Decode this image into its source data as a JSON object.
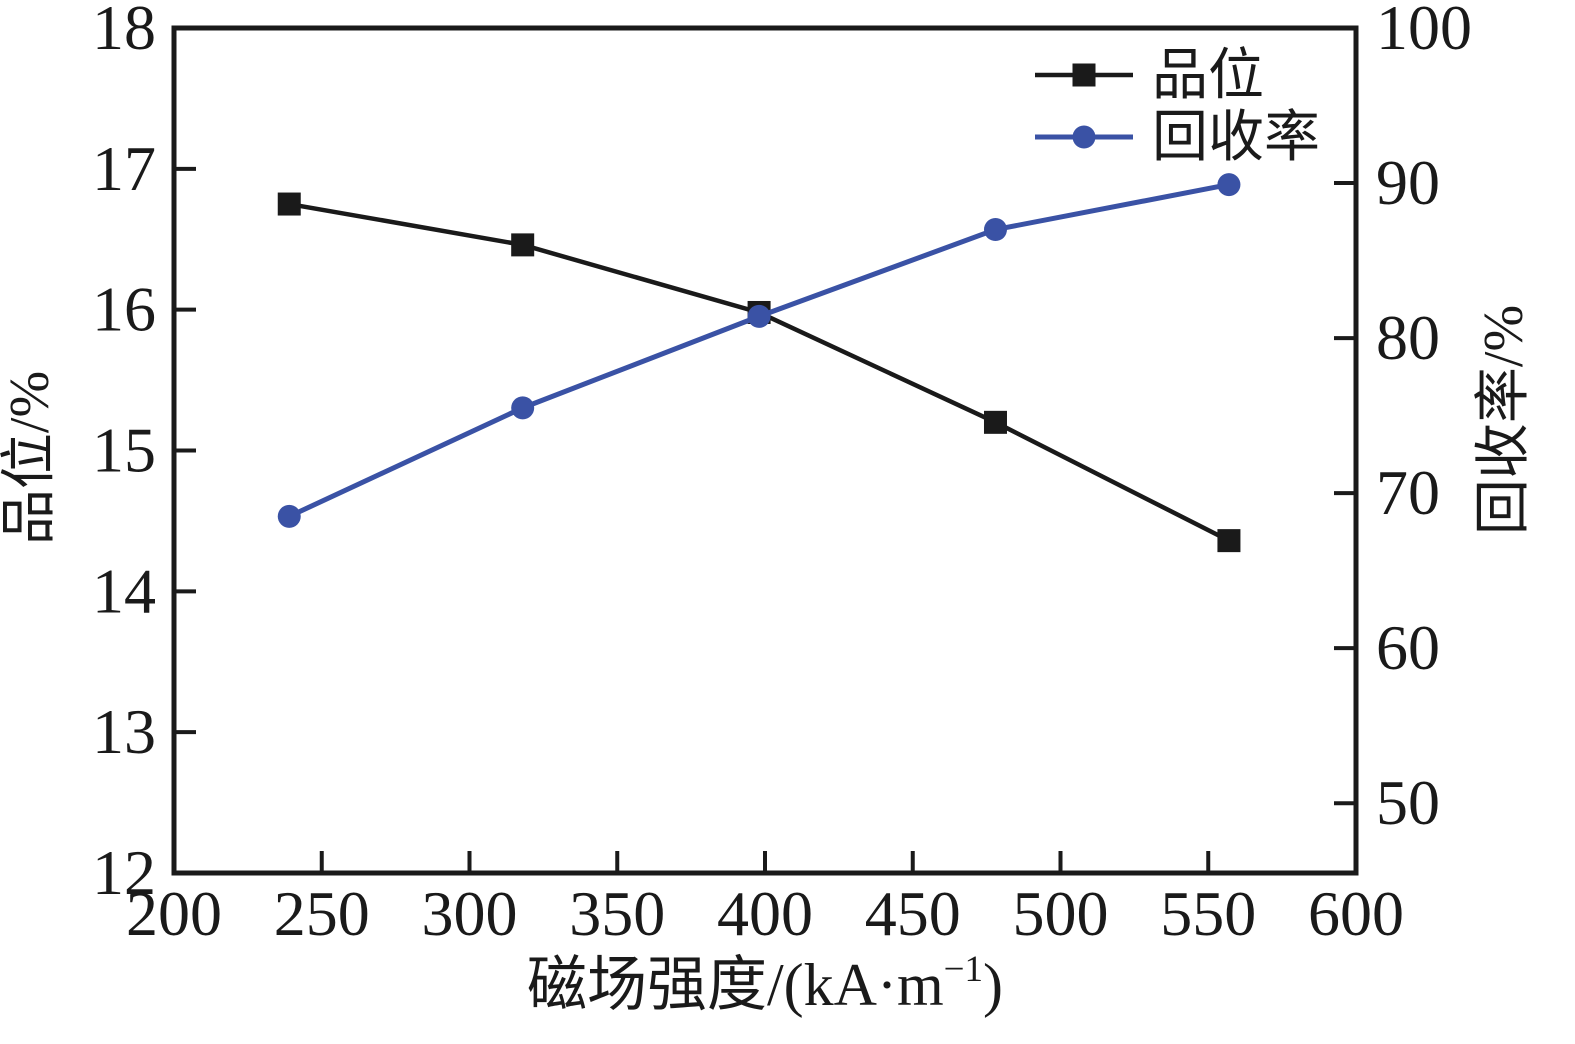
{
  "chart_data": {
    "type": "line",
    "title": "",
    "xlabel": "磁场强度/(kA·m⁻¹)",
    "xlabel_parts": {
      "main": "磁场强度/(kA·m",
      "sup": "−1",
      "close": ")"
    },
    "ylabel_left": "品位/%",
    "ylabel_right": "回收率/%",
    "xlim": [
      200,
      600
    ],
    "xticks": [
      200,
      250,
      300,
      350,
      400,
      450,
      500,
      550,
      600
    ],
    "ylim_left": [
      12,
      18
    ],
    "yticks_left": [
      12,
      13,
      14,
      15,
      16,
      17,
      18
    ],
    "ylim_right": [
      45.5,
      100
    ],
    "yticks_right": [
      50,
      60,
      70,
      80,
      90,
      100
    ],
    "grid": false,
    "legend_position": "top-right-inside",
    "x": [
      239,
      318,
      398,
      478,
      557
    ],
    "series": [
      {
        "name": "品位",
        "axis": "left",
        "marker": "square",
        "color": "#1a1a1a",
        "values": [
          16.75,
          16.46,
          15.98,
          15.2,
          14.36
        ]
      },
      {
        "name": "回收率",
        "axis": "right",
        "marker": "circle",
        "color": "#3a52a5",
        "values": [
          68.5,
          75.5,
          81.4,
          87.0,
          89.9
        ]
      }
    ]
  },
  "colors": {
    "axis": "#1a1a1a",
    "grade_series": "#1a1a1a",
    "recovery_series": "#3a52a5",
    "background": "#ffffff"
  }
}
